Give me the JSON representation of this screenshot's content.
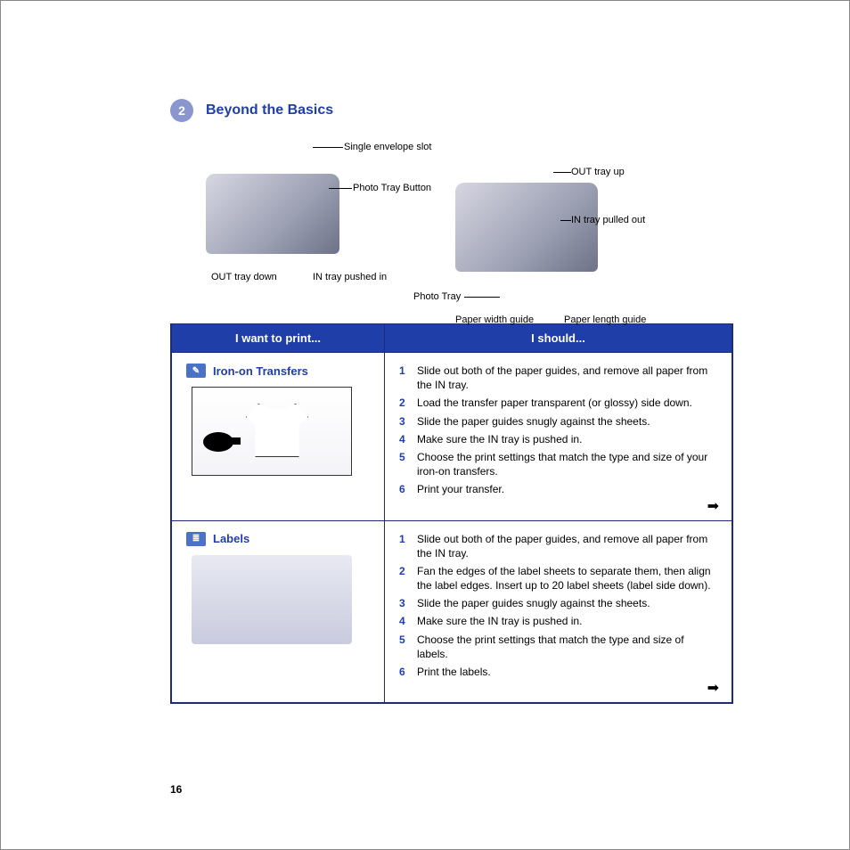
{
  "chapter": {
    "number": "2",
    "title": "Beyond the Basics"
  },
  "diagram": {
    "left": {
      "label_top1": "Single envelope slot",
      "label_top2": "Photo Tray Button",
      "label_bot1": "OUT tray down",
      "label_bot2": "IN tray pushed in"
    },
    "right": {
      "label_r1": "OUT tray up",
      "label_r2": "IN tray pulled out",
      "label_l1": "Photo Tray",
      "label_b1": "Paper width guide",
      "label_b2": "Paper length guide"
    }
  },
  "table": {
    "header_left": "I want to print...",
    "header_right": "I should...",
    "rows": [
      {
        "title": "Iron-on Transfers",
        "icon_glyph": "✎",
        "illus_kind": "tshirt",
        "steps": [
          "Slide out both of the paper guides, and remove all paper from the IN tray.",
          "Load the transfer paper transparent (or glossy) side down.",
          "Slide the paper guides snugly against the sheets.",
          "Make sure the IN tray is pushed in.",
          "Choose the print settings that match the type and size of your iron-on transfers.",
          "Print your transfer."
        ]
      },
      {
        "title": "Labels",
        "icon_glyph": "≣",
        "illus_kind": "labels",
        "steps": [
          "Slide out both of the paper guides, and remove all paper from the IN tray.",
          "Fan the edges of the label sheets to separate them, then align the label edges. Insert up to 20 label sheets (label side down).",
          "Slide the paper guides snugly against the sheets.",
          "Make sure the IN tray is pushed in.",
          "Choose the print settings that match the type and size of labels.",
          "Print the labels."
        ]
      }
    ]
  },
  "continue_glyph": "➡",
  "page_number": "16",
  "colors": {
    "brand_blue": "#1f3ea8",
    "badge_fill": "#8a96ce",
    "header_bg": "#1f3ea8"
  }
}
